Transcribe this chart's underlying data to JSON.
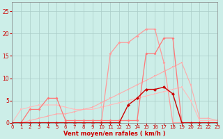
{
  "x": [
    0,
    1,
    2,
    3,
    4,
    5,
    6,
    7,
    8,
    9,
    10,
    11,
    12,
    13,
    14,
    15,
    16,
    17,
    18,
    19,
    20,
    21,
    22,
    23
  ],
  "line_lightest": [
    0,
    3,
    3.5,
    4,
    4,
    4,
    3.5,
    3,
    3,
    3,
    3.5,
    4,
    4.5,
    5,
    5.5,
    6,
    6.5,
    7,
    7.5,
    8,
    5,
    0.5,
    0.5,
    0.5
  ],
  "line_light": [
    0,
    0,
    0.5,
    1,
    1.5,
    2,
    2,
    2.5,
    3,
    3.5,
    4.5,
    5.5,
    6.5,
    7.5,
    8.5,
    9.5,
    10.5,
    11.5,
    12.5,
    13.5,
    8.5,
    1,
    1,
    0.5
  ],
  "line_med": [
    0,
    0,
    3,
    3,
    5.5,
    5.5,
    0.5,
    0.5,
    0.5,
    0.5,
    0.5,
    0.5,
    0.5,
    0.5,
    0.5,
    15.5,
    15.5,
    19,
    19,
    0,
    0,
    0,
    0,
    0
  ],
  "line_bright": [
    0,
    0,
    0,
    0,
    0,
    0,
    0,
    0,
    0,
    0,
    0,
    15.5,
    18,
    18,
    19.5,
    21,
    21,
    13.5,
    0,
    0,
    0,
    0,
    0,
    0
  ],
  "line_dark": [
    0,
    0,
    0,
    0,
    0,
    0,
    0,
    0,
    0,
    0,
    0,
    0,
    0,
    4,
    5.5,
    7.5,
    7.5,
    8,
    6.5,
    0,
    0,
    0,
    0,
    0
  ],
  "bg_color": "#cceee8",
  "grid_color": "#aaccc8",
  "line_lightest_color": "#ffbbbb",
  "line_light_color": "#ffaaaa",
  "line_med_color": "#ff7777",
  "line_bright_color": "#ff9999",
  "line_dark_color": "#cc0000",
  "marker_color_dark": "#cc0000",
  "xlabel": "Vent moyen/en rafales ( km/h )",
  "xlabel_color": "#cc0000",
  "tick_color": "#cc0000",
  "ylim": [
    0,
    27
  ],
  "xlim": [
    0,
    23
  ],
  "yticks": [
    0,
    5,
    10,
    15,
    20,
    25
  ],
  "xticks": [
    0,
    1,
    2,
    3,
    4,
    5,
    6,
    7,
    8,
    9,
    10,
    11,
    12,
    13,
    14,
    15,
    16,
    17,
    18,
    19,
    20,
    21,
    22,
    23
  ]
}
